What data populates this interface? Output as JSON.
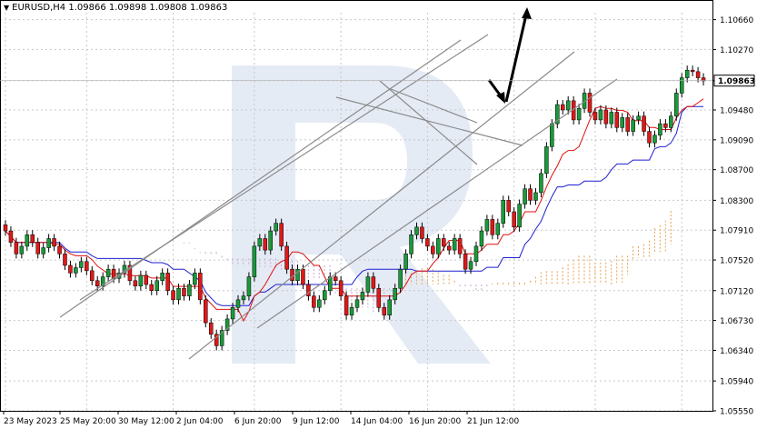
{
  "header": {
    "symbol": "EURUSD,H4",
    "values": "1.09866 1.09898 1.09808 1.09863"
  },
  "chart_data": {
    "type": "candlestick",
    "title": "EURUSD,H4 1.09866 1.09898 1.09808 1.09863",
    "ylim": [
      1.0555,
      1.1075
    ],
    "y_ticks": [
      "1.10660",
      "1.10270",
      "1.09863",
      "1.09480",
      "1.09090",
      "1.08700",
      "1.08300",
      "1.07910",
      "1.07520",
      "1.07120",
      "1.06730",
      "1.06340",
      "1.05940",
      "1.05550"
    ],
    "current_price": "1.09863",
    "x_ticks": [
      "23 May 2023",
      "25 May 20:00",
      "30 May 12:00",
      "2 Jun 04:00",
      "6 Jun 20:00",
      "9 Jun 12:00",
      "14 Jun 04:00",
      "16 Jun 20:00",
      "21 Jun 12:00"
    ],
    "grid": true,
    "closes": [
      1.079,
      1.0775,
      1.076,
      1.077,
      1.0785,
      1.0775,
      1.076,
      1.0768,
      1.078,
      1.077,
      1.076,
      1.0745,
      1.0735,
      1.0742,
      1.075,
      1.0738,
      1.0725,
      1.0718,
      1.073,
      1.074,
      1.0728,
      1.0735,
      1.0745,
      1.0725,
      1.0718,
      1.0732,
      1.072,
      1.0712,
      1.0725,
      1.0735,
      1.0712,
      1.07,
      1.0715,
      1.0705,
      1.072,
      1.0735,
      1.07,
      1.067,
      1.0655,
      1.064,
      1.066,
      1.0675,
      1.069,
      1.07,
      1.0705,
      1.073,
      1.077,
      1.078,
      1.0765,
      1.079,
      1.08,
      1.077,
      1.074,
      1.0725,
      1.074,
      1.072,
      1.0705,
      1.069,
      1.07,
      1.0712,
      1.073,
      1.0725,
      1.0705,
      1.068,
      1.069,
      1.07,
      1.071,
      1.073,
      1.0715,
      1.069,
      1.068,
      1.07,
      1.0715,
      1.074,
      1.076,
      1.0785,
      1.0795,
      1.078,
      1.077,
      1.076,
      1.078,
      1.077,
      1.0765,
      1.078,
      1.076,
      1.074,
      1.075,
      1.077,
      1.079,
      1.0805,
      1.0785,
      1.08,
      1.083,
      1.0815,
      1.0795,
      1.0825,
      1.0845,
      1.083,
      1.084,
      1.0865,
      1.09,
      1.093,
      1.0955,
      1.0948,
      1.096,
      1.0935,
      1.095,
      1.097,
      1.0945,
      1.0935,
      1.0948,
      1.093,
      1.0945,
      1.0925,
      1.0938,
      1.092,
      1.0935,
      1.094,
      1.092,
      1.0905,
      1.0915,
      1.093,
      1.0925,
      1.094,
      1.097,
      1.099,
      1.1,
      1.0998,
      1.099,
      1.0986
    ],
    "overlays": [
      "Ichimoku Kinko Hyo: Tenkan-sen (red)",
      "Kijun-sen (blue)",
      "Kumo cloud (orange / violet)"
    ],
    "annotations": [
      "ascending channel lines",
      "triangle pattern",
      "forecast arrows: down then up"
    ]
  }
}
